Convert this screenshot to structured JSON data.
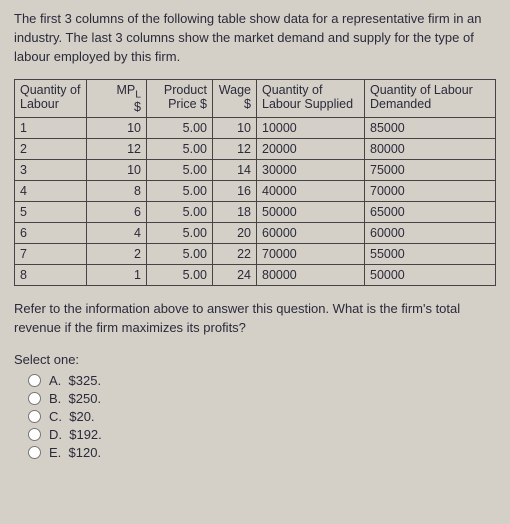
{
  "intro": "The first 3 columns of the following table show data for a representative firm in an industry. The last 3 columns show the market demand and supply for the type of labour employed by this firm.",
  "headers": {
    "h1": "Quantity of Labour",
    "h2_a": "MP",
    "h2_b": "L",
    "h2_c": "$",
    "h3": "Product Price $",
    "h4": "Wage $",
    "h5": "Quantity of Labour Supplied",
    "h6": "Quantity of Labour Demanded"
  },
  "rows": [
    {
      "q": "1",
      "mp": "10",
      "pp": "5.00",
      "w": "10",
      "qs": "10000",
      "qd": "85000"
    },
    {
      "q": "2",
      "mp": "12",
      "pp": "5.00",
      "w": "12",
      "qs": "20000",
      "qd": "80000"
    },
    {
      "q": "3",
      "mp": "10",
      "pp": "5.00",
      "w": "14",
      "qs": "30000",
      "qd": "75000"
    },
    {
      "q": "4",
      "mp": "8",
      "pp": "5.00",
      "w": "16",
      "qs": "40000",
      "qd": "70000"
    },
    {
      "q": "5",
      "mp": "6",
      "pp": "5.00",
      "w": "18",
      "qs": "50000",
      "qd": "65000"
    },
    {
      "q": "6",
      "mp": "4",
      "pp": "5.00",
      "w": "20",
      "qs": "60000",
      "qd": "60000"
    },
    {
      "q": "7",
      "mp": "2",
      "pp": "5.00",
      "w": "22",
      "qs": "70000",
      "qd": "55000"
    },
    {
      "q": "8",
      "mp": "1",
      "pp": "5.00",
      "w": "24",
      "qs": "80000",
      "qd": "50000"
    }
  ],
  "followup": "Refer to the information above to answer this question. What is the firm's total revenue if the firm maximizes its profits?",
  "select_one": "Select one:",
  "options": [
    {
      "letter": "A.",
      "text": "$325."
    },
    {
      "letter": "B.",
      "text": "$250."
    },
    {
      "letter": "C.",
      "text": "$20."
    },
    {
      "letter": "D.",
      "text": "$192."
    },
    {
      "letter": "E.",
      "text": "$120."
    }
  ]
}
